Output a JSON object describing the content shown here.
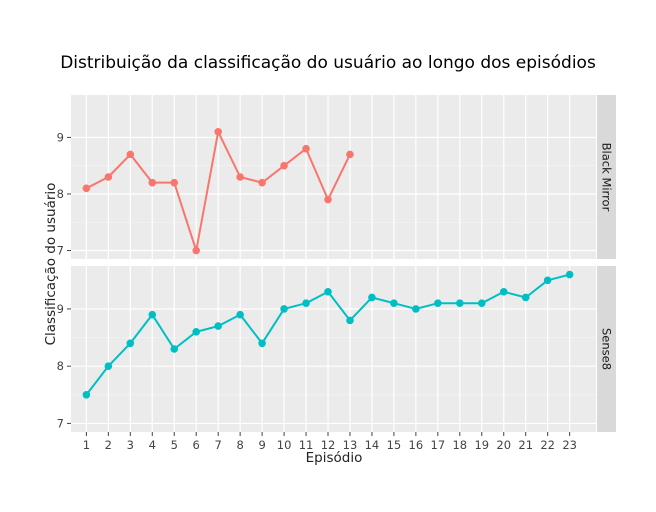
{
  "chart_data": {
    "type": "line",
    "title": "Distribuição da classificação do usuário ao longo dos episódios",
    "xlabel": "Episódio",
    "ylabel": "Classificação do usuário",
    "x_ticks": [
      1,
      2,
      3,
      4,
      5,
      6,
      7,
      8,
      9,
      10,
      11,
      12,
      13,
      14,
      15,
      16,
      17,
      18,
      19,
      20,
      21,
      22,
      23
    ],
    "y_ticks": [
      7,
      8,
      9
    ],
    "xlim": [
      0.3,
      24.2
    ],
    "grid": true,
    "legend": "none",
    "facets": [
      {
        "name": "Black Mirror",
        "color": "#F8766D",
        "ylim": [
          6.85,
          9.75
        ],
        "x": [
          1,
          2,
          3,
          4,
          5,
          6,
          7,
          8,
          9,
          10,
          11,
          12,
          13
        ],
        "values": [
          8.1,
          8.3,
          8.7,
          8.2,
          8.2,
          7.0,
          9.1,
          8.3,
          8.2,
          8.5,
          8.8,
          7.9,
          8.7
        ]
      },
      {
        "name": "Sense8",
        "color": "#00BFC4",
        "ylim": [
          6.85,
          9.75
        ],
        "x": [
          1,
          2,
          3,
          4,
          5,
          6,
          7,
          8,
          9,
          10,
          11,
          12,
          13,
          14,
          15,
          16,
          17,
          18,
          19,
          20,
          21,
          22,
          23
        ],
        "values": [
          7.5,
          8.0,
          8.4,
          8.9,
          8.3,
          8.6,
          8.7,
          8.9,
          8.4,
          9.0,
          9.1,
          9.3,
          8.8,
          9.2,
          9.1,
          9.0,
          9.1,
          9.1,
          9.1,
          9.3,
          9.2,
          9.5,
          9.6
        ]
      }
    ]
  }
}
